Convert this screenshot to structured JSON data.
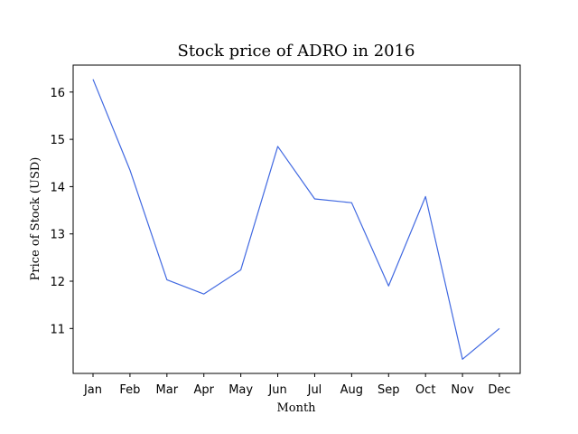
{
  "chart_data": {
    "type": "line",
    "title": "Stock price of ADRO in 2016",
    "xlabel": "Month",
    "ylabel": "Price of Stock (USD)",
    "categories": [
      "Jan",
      "Feb",
      "Mar",
      "Apr",
      "May",
      "Jun",
      "Jul",
      "Aug",
      "Sep",
      "Oct",
      "Nov",
      "Dec"
    ],
    "series": [
      {
        "values": [
          16.27,
          14.35,
          12.03,
          11.73,
          12.24,
          14.85,
          13.74,
          13.66,
          11.9,
          13.79,
          10.35,
          11.0
        ]
      }
    ],
    "yticks": [
      11,
      12,
      13,
      14,
      15,
      16
    ],
    "ylim": [
      10.05,
      16.57
    ],
    "grid": false,
    "line_color": "#4169e1"
  }
}
